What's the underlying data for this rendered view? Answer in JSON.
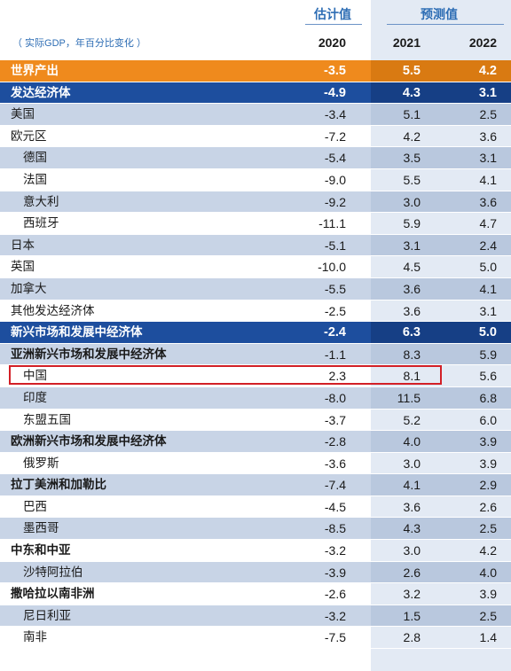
{
  "header": {
    "estimate_label": "估计值",
    "projection_label": "预测值",
    "unit_note": "（ 实际GDP，年百分比变化 ）",
    "years": [
      "2020",
      "2021",
      "2022"
    ]
  },
  "colors": {
    "orange": "#ef8a1d",
    "navy": "#1d4e9e",
    "shade": "#c8d4e6",
    "projection_bg": "#e3eaf4",
    "highlight_border": "#d21f26"
  },
  "rows": [
    {
      "label": "世界产出",
      "v2020": "-3.5",
      "v2021": "5.5",
      "v2022": "4.2",
      "style": "orange"
    },
    {
      "label": "发达经济体",
      "v2020": "-4.9",
      "v2021": "4.3",
      "v2022": "3.1",
      "style": "blue"
    },
    {
      "label": "美国",
      "v2020": "-3.4",
      "v2021": "5.1",
      "v2022": "2.5",
      "style": "shade"
    },
    {
      "label": "欧元区",
      "v2020": "-7.2",
      "v2021": "4.2",
      "v2022": "3.6",
      "style": "plain"
    },
    {
      "label": "德国",
      "v2020": "-5.4",
      "v2021": "3.5",
      "v2022": "3.1",
      "style": "shade",
      "indent": true
    },
    {
      "label": "法国",
      "v2020": "-9.0",
      "v2021": "5.5",
      "v2022": "4.1",
      "style": "plain",
      "indent": true
    },
    {
      "label": "意大利",
      "v2020": "-9.2",
      "v2021": "3.0",
      "v2022": "3.6",
      "style": "shade",
      "indent": true
    },
    {
      "label": "西班牙",
      "v2020": "-11.1",
      "v2021": "5.9",
      "v2022": "4.7",
      "style": "plain",
      "indent": true
    },
    {
      "label": "日本",
      "v2020": "-5.1",
      "v2021": "3.1",
      "v2022": "2.4",
      "style": "shade"
    },
    {
      "label": "英国",
      "v2020": "-10.0",
      "v2021": "4.5",
      "v2022": "5.0",
      "style": "plain"
    },
    {
      "label": "加拿大",
      "v2020": "-5.5",
      "v2021": "3.6",
      "v2022": "4.1",
      "style": "shade"
    },
    {
      "label": "其他发达经济体",
      "v2020": "-2.5",
      "v2021": "3.6",
      "v2022": "3.1",
      "style": "plain"
    },
    {
      "label": "新兴市场和发展中经济体",
      "v2020": "-2.4",
      "v2021": "6.3",
      "v2022": "5.0",
      "style": "blue"
    },
    {
      "label": "亚洲新兴市场和发展中经济体",
      "v2020": "-1.1",
      "v2021": "8.3",
      "v2022": "5.9",
      "style": "shade",
      "sub": true
    },
    {
      "label": "中国",
      "v2020": "2.3",
      "v2021": "8.1",
      "v2022": "5.6",
      "style": "plain",
      "indent": true,
      "highlight": true
    },
    {
      "label": "印度",
      "v2020": "-8.0",
      "v2021": "11.5",
      "v2022": "6.8",
      "style": "shade",
      "indent": true
    },
    {
      "label": "东盟五国",
      "v2020": "-3.7",
      "v2021": "5.2",
      "v2022": "6.0",
      "style": "plain",
      "indent": true
    },
    {
      "label": "欧洲新兴市场和发展中经济体",
      "v2020": "-2.8",
      "v2021": "4.0",
      "v2022": "3.9",
      "style": "shade",
      "sub": true
    },
    {
      "label": "俄罗斯",
      "v2020": "-3.6",
      "v2021": "3.0",
      "v2022": "3.9",
      "style": "plain",
      "indent": true
    },
    {
      "label": "拉丁美洲和加勒比",
      "v2020": "-7.4",
      "v2021": "4.1",
      "v2022": "2.9",
      "style": "shade",
      "sub": true
    },
    {
      "label": "巴西",
      "v2020": "-4.5",
      "v2021": "3.6",
      "v2022": "2.6",
      "style": "plain",
      "indent": true
    },
    {
      "label": "墨西哥",
      "v2020": "-8.5",
      "v2021": "4.3",
      "v2022": "2.5",
      "style": "shade",
      "indent": true
    },
    {
      "label": "中东和中亚",
      "v2020": "-3.2",
      "v2021": "3.0",
      "v2022": "4.2",
      "style": "plain",
      "sub": true
    },
    {
      "label": "沙特阿拉伯",
      "v2020": "-3.9",
      "v2021": "2.6",
      "v2022": "4.0",
      "style": "shade",
      "indent": true
    },
    {
      "label": "撒哈拉以南非洲",
      "v2020": "-2.6",
      "v2021": "3.2",
      "v2022": "3.9",
      "style": "plain",
      "sub": true
    },
    {
      "label": "尼日利亚",
      "v2020": "-3.2",
      "v2021": "1.5",
      "v2022": "2.5",
      "style": "shade",
      "indent": true
    },
    {
      "label": "南非",
      "v2020": "-7.5",
      "v2021": "2.8",
      "v2022": "1.4",
      "style": "plain",
      "indent": true
    }
  ]
}
